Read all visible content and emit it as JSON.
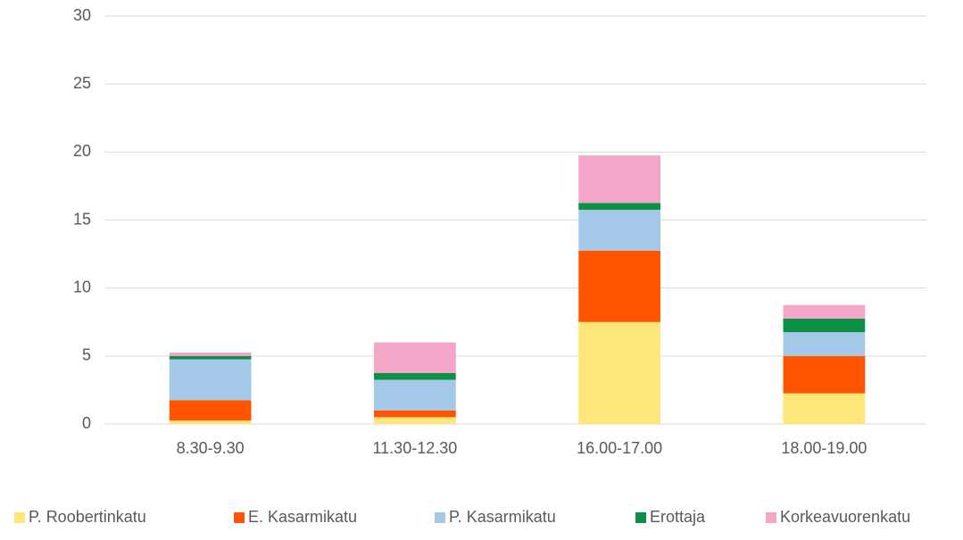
{
  "chart_data": {
    "type": "stacked_bar",
    "categories": [
      "8.30-9.30",
      "11.30-12.30",
      "16.00-17.00",
      "18.00-19.00"
    ],
    "series": [
      {
        "name": "P. Roobertinkatu",
        "color": "#ffe67a",
        "values": [
          0.25,
          0.5,
          7.5,
          2.25
        ]
      },
      {
        "name": "E. Kasarmikatu",
        "color": "#ff5500",
        "values": [
          1.5,
          0.5,
          5.25,
          2.75
        ]
      },
      {
        "name": "P. Kasarmikatu",
        "color": "#a3c8e8",
        "values": [
          3,
          2.25,
          3,
          1.75
        ]
      },
      {
        "name": "Erottaja",
        "color": "#0d8f46",
        "values": [
          0.25,
          0.5,
          0.5,
          1
        ]
      },
      {
        "name": "Korkeavuorenkatu",
        "color": "#f4a6c9",
        "values": [
          0.25,
          2.25,
          3.5,
          1
        ]
      }
    ],
    "ylim": [
      0,
      30
    ],
    "yticks": [
      0,
      5,
      10,
      15,
      20,
      25,
      30
    ],
    "grid": true,
    "legend": "bottom"
  }
}
